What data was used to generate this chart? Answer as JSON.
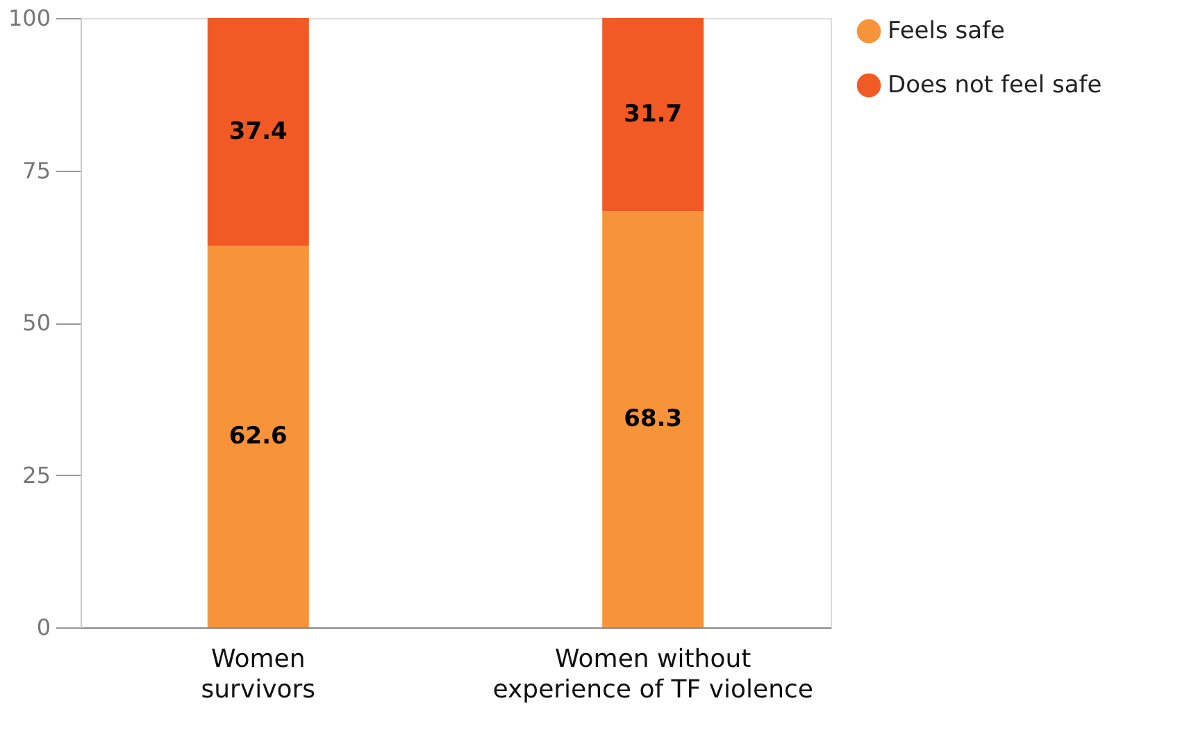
{
  "chart_data": {
    "type": "bar",
    "stacked": true,
    "categories": [
      "Women\nsurvivors",
      "Women without\nexperience of TF violence"
    ],
    "series": [
      {
        "name": "Feels safe",
        "color": "#f7943a",
        "values": [
          62.6,
          68.3
        ]
      },
      {
        "name": "Does not feel safe",
        "color": "#f15a24",
        "values": [
          37.4,
          31.7
        ]
      }
    ],
    "ylim": [
      0,
      100
    ],
    "yticks": [
      0,
      25,
      50,
      75,
      100
    ],
    "grid": false,
    "legend": "right",
    "data_labels": true
  }
}
